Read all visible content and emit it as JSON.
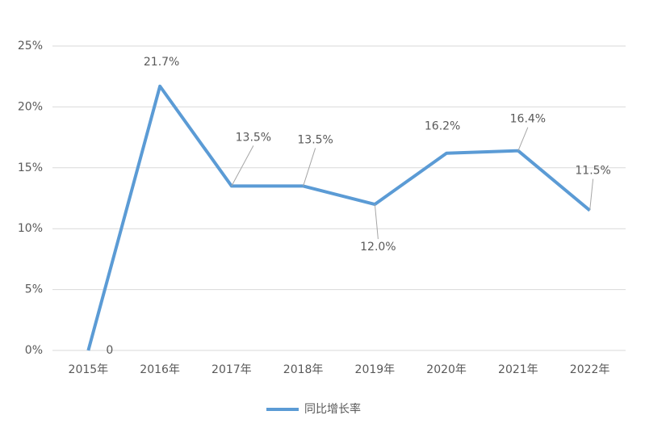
{
  "chart_data": {
    "type": "line",
    "categories": [
      "2015年",
      "2016年",
      "2017年",
      "2018年",
      "2019年",
      "2020年",
      "2021年",
      "2022年"
    ],
    "series": [
      {
        "name": "同比增长率",
        "color": "#5b9bd5",
        "values": [
          0,
          21.7,
          13.5,
          13.5,
          12.0,
          16.2,
          16.4,
          11.5
        ],
        "value_labels": [
          "0",
          "21.7%",
          "13.5%",
          "13.5%",
          "12.0%",
          "16.2%",
          "16.4%",
          "11.5%"
        ]
      }
    ],
    "ylim": [
      0,
      25
    ],
    "yticks": [
      {
        "value": 0,
        "label": "0%"
      },
      {
        "value": 5,
        "label": "5%"
      },
      {
        "value": 10,
        "label": "10%"
      },
      {
        "value": 15,
        "label": "15%"
      },
      {
        "value": 20,
        "label": "20%"
      },
      {
        "value": 25,
        "label": "25%"
      }
    ],
    "grid": true,
    "legend": "bottom"
  }
}
